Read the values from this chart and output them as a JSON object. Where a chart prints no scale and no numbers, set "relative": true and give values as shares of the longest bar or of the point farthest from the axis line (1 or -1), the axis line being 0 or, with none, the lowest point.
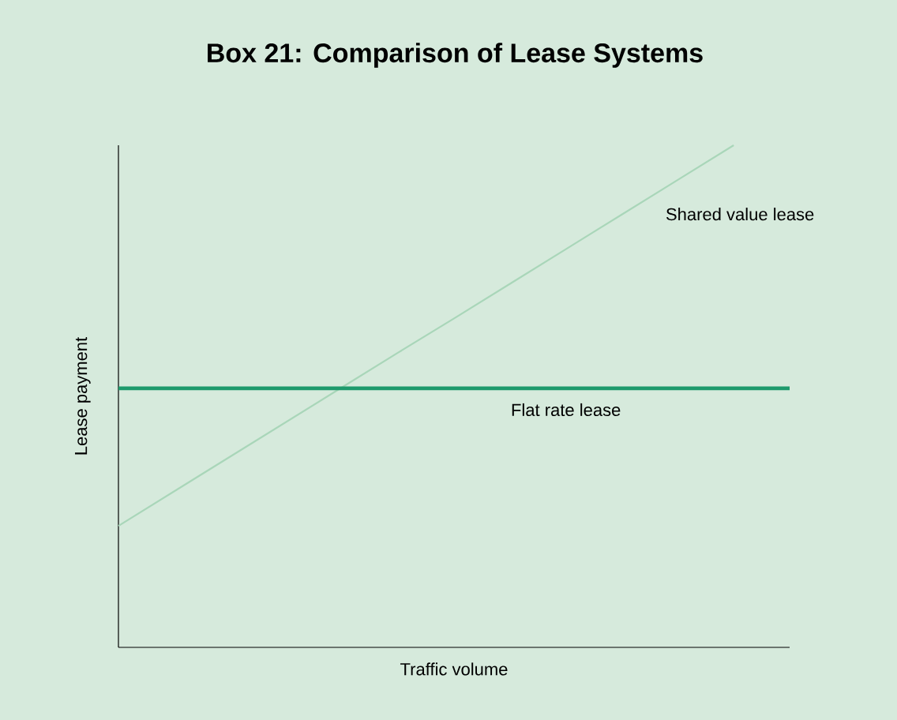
{
  "chart_data": {
    "type": "line",
    "title": "Box 21: Comparison of Lease Systems",
    "xlabel": "Traffic volume",
    "ylabel": "Lease payment",
    "relative": true,
    "marker": "none",
    "categories": [
      null,
      null,
      null,
      null,
      null,
      null,
      null,
      null,
      null,
      null,
      null,
      null,
      null
    ],
    "series": [
      {
        "name": "Shared value lease",
        "color": "#a9d6b9",
        "values": [
          0.242,
          0.311,
          0.38,
          0.449,
          0.518,
          0.587,
          0.655,
          0.724,
          0.793,
          0.862,
          0.931,
          1.0,
          null
        ]
      },
      {
        "name": "Flat rate lease",
        "color": "#1e9a6c",
        "values": [
          0.516,
          0.516,
          0.516,
          0.516,
          0.516,
          0.516,
          0.516,
          0.516,
          0.516,
          0.516,
          0.516,
          0.516,
          0.516
        ]
      }
    ]
  }
}
